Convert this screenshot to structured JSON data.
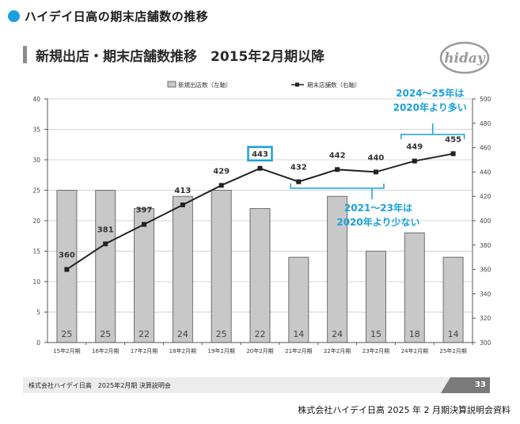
{
  "page": {
    "title": "ハイデイ日高の期末店舗数の推移",
    "slide_heading": "新規出店・期末店舗数推移　2015年2月期以降",
    "logo_text": "hiday",
    "footer_left": "株式会社ハイデイ日高　2025年2月期 決算説明会",
    "footer_page": "33",
    "source_note": "株式会社ハイデイ日高 2025 年 2 月期決算説明会資料",
    "colors": {
      "accent": "#1aa0dc",
      "bar_fill": "#c8c8c8",
      "bar_stroke": "#6e6e6e",
      "line": "#222222",
      "grid": "#d4d4d4"
    }
  },
  "chart_data": {
    "type": "bar+line",
    "categories": [
      "15年2月期",
      "16年2月期",
      "17年2月期",
      "18年2月期",
      "19年2月期",
      "20年2月期",
      "21年2月期",
      "22年2月期",
      "23年2月期",
      "24年2月期",
      "25年2月期"
    ],
    "series": [
      {
        "name": "新規出店数（左軸）",
        "type": "bar",
        "axis": "left",
        "values": [
          25,
          25,
          22,
          24,
          25,
          22,
          14,
          24,
          15,
          18,
          14
        ]
      },
      {
        "name": "期末店舗数（右軸）",
        "type": "line",
        "axis": "right",
        "values": [
          360,
          381,
          397,
          413,
          429,
          443,
          432,
          442,
          440,
          449,
          455
        ]
      }
    ],
    "left_axis": {
      "min": 0,
      "max": 40,
      "ticks": [
        0,
        5,
        10,
        15,
        20,
        25,
        30,
        35,
        40
      ]
    },
    "right_axis": {
      "min": 300,
      "max": 500,
      "ticks": [
        300,
        320,
        340,
        360,
        380,
        400,
        420,
        440,
        460,
        480,
        500
      ]
    },
    "grid": true,
    "legend_position": "top",
    "highlighted_point": {
      "category": "20年2月期",
      "value": 443
    },
    "annotations": [
      {
        "text_lines": [
          "2024～25年は",
          "2020年より多い"
        ],
        "bracket_categories": [
          "24年2月期",
          "25年2月期"
        ],
        "bracket_side": "below-text"
      },
      {
        "text_lines": [
          "2021～23年は",
          "2020年より少ない"
        ],
        "bracket_categories": [
          "21年2月期",
          "23年2月期"
        ],
        "bracket_side": "above-text"
      }
    ]
  }
}
